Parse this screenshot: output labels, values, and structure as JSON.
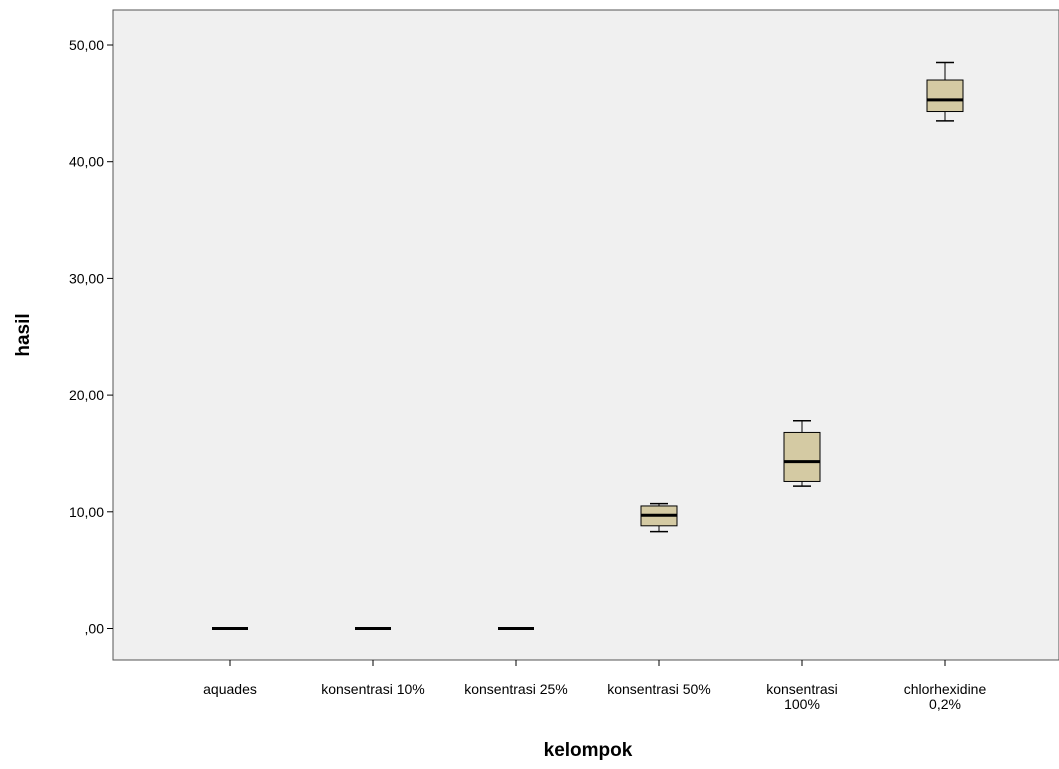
{
  "chart_data": {
    "type": "box",
    "title": "",
    "xlabel": "kelompok",
    "ylabel": "hasil",
    "ylim": [
      -2.7,
      53
    ],
    "yticks": [
      0,
      10,
      20,
      30,
      40,
      50
    ],
    "ytick_labels": [
      ",00",
      "10,00",
      "20,00",
      "30,00",
      "40,00",
      "50,00"
    ],
    "grid": false,
    "box_fill": "#d4caa3",
    "plot_background": "#f0f0f0",
    "categories": [
      {
        "lines": [
          "aquades"
        ]
      },
      {
        "lines": [
          "konsentrasi 10%"
        ]
      },
      {
        "lines": [
          "konsentrasi 25%"
        ]
      },
      {
        "lines": [
          "konsentrasi 50%"
        ]
      },
      {
        "lines": [
          "konsentrasi",
          "100%"
        ]
      },
      {
        "lines": [
          "chlorhexidine",
          "0,2%"
        ]
      }
    ],
    "boxes": [
      {
        "min": 0,
        "q1": 0,
        "median": 0,
        "q3": 0,
        "max": 0
      },
      {
        "min": 0,
        "q1": 0,
        "median": 0,
        "q3": 0,
        "max": 0
      },
      {
        "min": 0,
        "q1": 0,
        "median": 0,
        "q3": 0,
        "max": 0
      },
      {
        "min": 8.3,
        "q1": 8.8,
        "median": 9.7,
        "q3": 10.5,
        "max": 10.7
      },
      {
        "min": 12.2,
        "q1": 12.6,
        "median": 14.3,
        "q3": 16.8,
        "max": 17.8
      },
      {
        "min": 43.5,
        "q1": 44.3,
        "median": 45.3,
        "q3": 47.0,
        "max": 48.5
      }
    ]
  }
}
